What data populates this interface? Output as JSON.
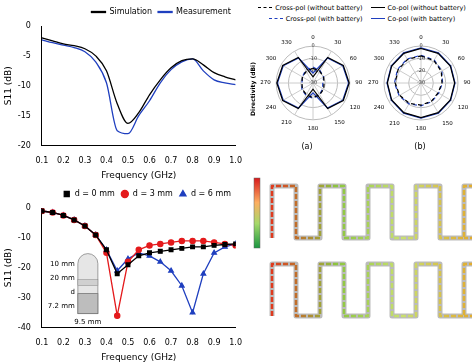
{
  "chart_data": [
    {
      "type": "line",
      "x_label": "Frequency (GHz)",
      "y_label": "S11 (dB)",
      "x": [
        0.1,
        0.15,
        0.2,
        0.25,
        0.3,
        0.35,
        0.4,
        0.45,
        0.5,
        0.55,
        0.6,
        0.65,
        0.7,
        0.75,
        0.8,
        0.85,
        0.9,
        0.95,
        1.0
      ],
      "series": [
        {
          "name": "Simulation",
          "color": "#000000",
          "values": [
            -2,
            -2.5,
            -3,
            -3.3,
            -3.8,
            -5,
            -7.5,
            -13,
            -16.3,
            -14.5,
            -11.5,
            -9,
            -7,
            -5.8,
            -5.5,
            -6.5,
            -7.8,
            -8.5,
            -9
          ]
        },
        {
          "name": "Measurement",
          "color": "#1f3fbf",
          "values": [
            -2.3,
            -2.8,
            -3.2,
            -3.6,
            -4.3,
            -6,
            -9.5,
            -17.5,
            -18,
            -15,
            -12.5,
            -9.5,
            -7.3,
            -6,
            -5.5,
            -7.5,
            -9,
            -9.5,
            -9.8
          ]
        }
      ],
      "xlim": [
        0.1,
        1.0
      ],
      "xticks": [
        0.1,
        0.2,
        0.3,
        0.4,
        0.5,
        0.6,
        0.7,
        0.8,
        0.9,
        {
          "value": 1.0,
          "label": "1.0"
        }
      ],
      "ylim": [
        -20,
        0
      ],
      "yticks": [
        -20,
        -15,
        -10,
        -5,
        0
      ],
      "legend": "top",
      "grid": false
    },
    {
      "type": "radar",
      "title": "(a)",
      "y_label": "Directivity (dBi)",
      "categories": [
        0,
        30,
        60,
        90,
        120,
        150,
        180,
        210,
        240,
        270,
        300,
        330
      ],
      "series": [
        {
          "name": "Cross-pol (without battery)",
          "color": "#000000",
          "line_style": "dashed",
          "values": [
            -18,
            -19,
            -20,
            -21,
            -20,
            -19,
            -18,
            -19,
            -20,
            -21,
            -20,
            -19
          ]
        },
        {
          "name": "Co-pol (without battery)",
          "color": "#000000",
          "line_style": "solid",
          "values": [
            -25,
            -6,
            -1.5,
            -0.5,
            -1.5,
            -6,
            -25,
            -6,
            -1.5,
            -0.5,
            -1.5,
            -6
          ]
        },
        {
          "name": "Cross-pol (with battery)",
          "color": "#1f3fbf",
          "line_style": "dashed",
          "values": [
            -17,
            -18.5,
            -20,
            -22,
            -21,
            -19,
            -17.5,
            -18.5,
            -19.5,
            -21,
            -20,
            -18
          ]
        },
        {
          "name": "Co-pol (with battery)",
          "color": "#1f3fbf",
          "line_style": "solid",
          "values": [
            -22,
            -6.5,
            -2,
            -1,
            -2,
            -6.5,
            -22,
            -6.5,
            -2,
            -1,
            -2,
            -6.5
          ]
        }
      ],
      "ylim": [
        -30,
        0
      ],
      "yticks": [
        -30,
        -20,
        -10,
        0
      ],
      "legend": "top",
      "grid": true
    },
    {
      "type": "radar",
      "title": "(b)",
      "categories": [
        0,
        30,
        60,
        90,
        120,
        150,
        180,
        210,
        240,
        270,
        300,
        330
      ],
      "series": [
        {
          "name": "Cross-pol (without battery)",
          "color": "#000000",
          "line_style": "dashed",
          "values": [
            -8,
            -9,
            -11,
            -13,
            -14,
            -13,
            -12,
            -11,
            -10,
            -9,
            -8.5,
            -8
          ]
        },
        {
          "name": "Co-pol (without battery)",
          "color": "#000000",
          "line_style": "solid",
          "values": [
            -2,
            -2.2,
            -2.5,
            -2.7,
            -2.5,
            -2.2,
            -2,
            -2.2,
            -2.5,
            -2.7,
            -2.5,
            -2.2
          ]
        },
        {
          "name": "Cross-pol (with battery)",
          "color": "#1f3fbf",
          "line_style": "dashed",
          "values": [
            -7.5,
            -8.5,
            -10.5,
            -12.5,
            -13.5,
            -12.5,
            -11.5,
            -10.5,
            -9.5,
            -8.5,
            -8,
            -7.5
          ]
        },
        {
          "name": "Co-pol (with battery)",
          "color": "#1f3fbf",
          "line_style": "solid",
          "values": [
            -1.5,
            -1.8,
            -2.2,
            -2.4,
            -2.2,
            -1.8,
            -1.5,
            -1.8,
            -2.2,
            -2.4,
            -2.2,
            -1.8
          ]
        }
      ],
      "ylim": [
        -30,
        0
      ],
      "yticks": [
        -30,
        -20,
        -10,
        0
      ],
      "grid": true
    },
    {
      "type": "line",
      "x_label": "Frequency (GHz)",
      "y_label": "S11 (dB)",
      "x": [
        0.1,
        0.15,
        0.2,
        0.25,
        0.3,
        0.35,
        0.4,
        0.45,
        0.5,
        0.55,
        0.6,
        0.65,
        0.7,
        0.75,
        0.8,
        0.85,
        0.9,
        0.95,
        1.0
      ],
      "series": [
        {
          "name": "d = 0 mm",
          "color": "#000000",
          "marker": "square",
          "values": [
            -1,
            -1.5,
            -2.5,
            -4,
            -6,
            -9,
            -14,
            -22,
            -19,
            -16,
            -15,
            -14.5,
            -14,
            -13.5,
            -13,
            -13,
            -12.5,
            -12.2,
            -12
          ]
        },
        {
          "name": "d = 3 mm",
          "color": "#e41a1c",
          "marker": "circle",
          "values": [
            -1,
            -1.5,
            -2.5,
            -4,
            -6,
            -9,
            -15,
            -36,
            -18,
            -14,
            -12.5,
            -12,
            -11.5,
            -11,
            -11,
            -11,
            -11.5,
            -12,
            -12.5
          ]
        },
        {
          "name": "d = 6 mm",
          "color": "#1f3fbf",
          "marker": "triangle",
          "values": [
            -1,
            -1.5,
            -2.5,
            -4,
            -6,
            -9,
            -14,
            -21,
            -17,
            -15,
            -16,
            -18,
            -21,
            -26,
            -35,
            -22,
            -15,
            -13,
            -12
          ]
        }
      ],
      "xlim": [
        0.1,
        1.0
      ],
      "xticks": [
        0.1,
        0.2,
        0.3,
        0.4,
        0.5,
        0.6,
        0.7,
        0.8,
        0.9,
        {
          "value": 1.0,
          "label": "1.0"
        }
      ],
      "ylim": [
        -40,
        0
      ],
      "yticks": [
        -40,
        -30,
        -20,
        -10,
        0
      ],
      "legend": "top",
      "grid": false,
      "annotations": [
        "10 mm",
        "20 mm",
        "d",
        "7.2 mm",
        "9.5 mm"
      ]
    }
  ]
}
